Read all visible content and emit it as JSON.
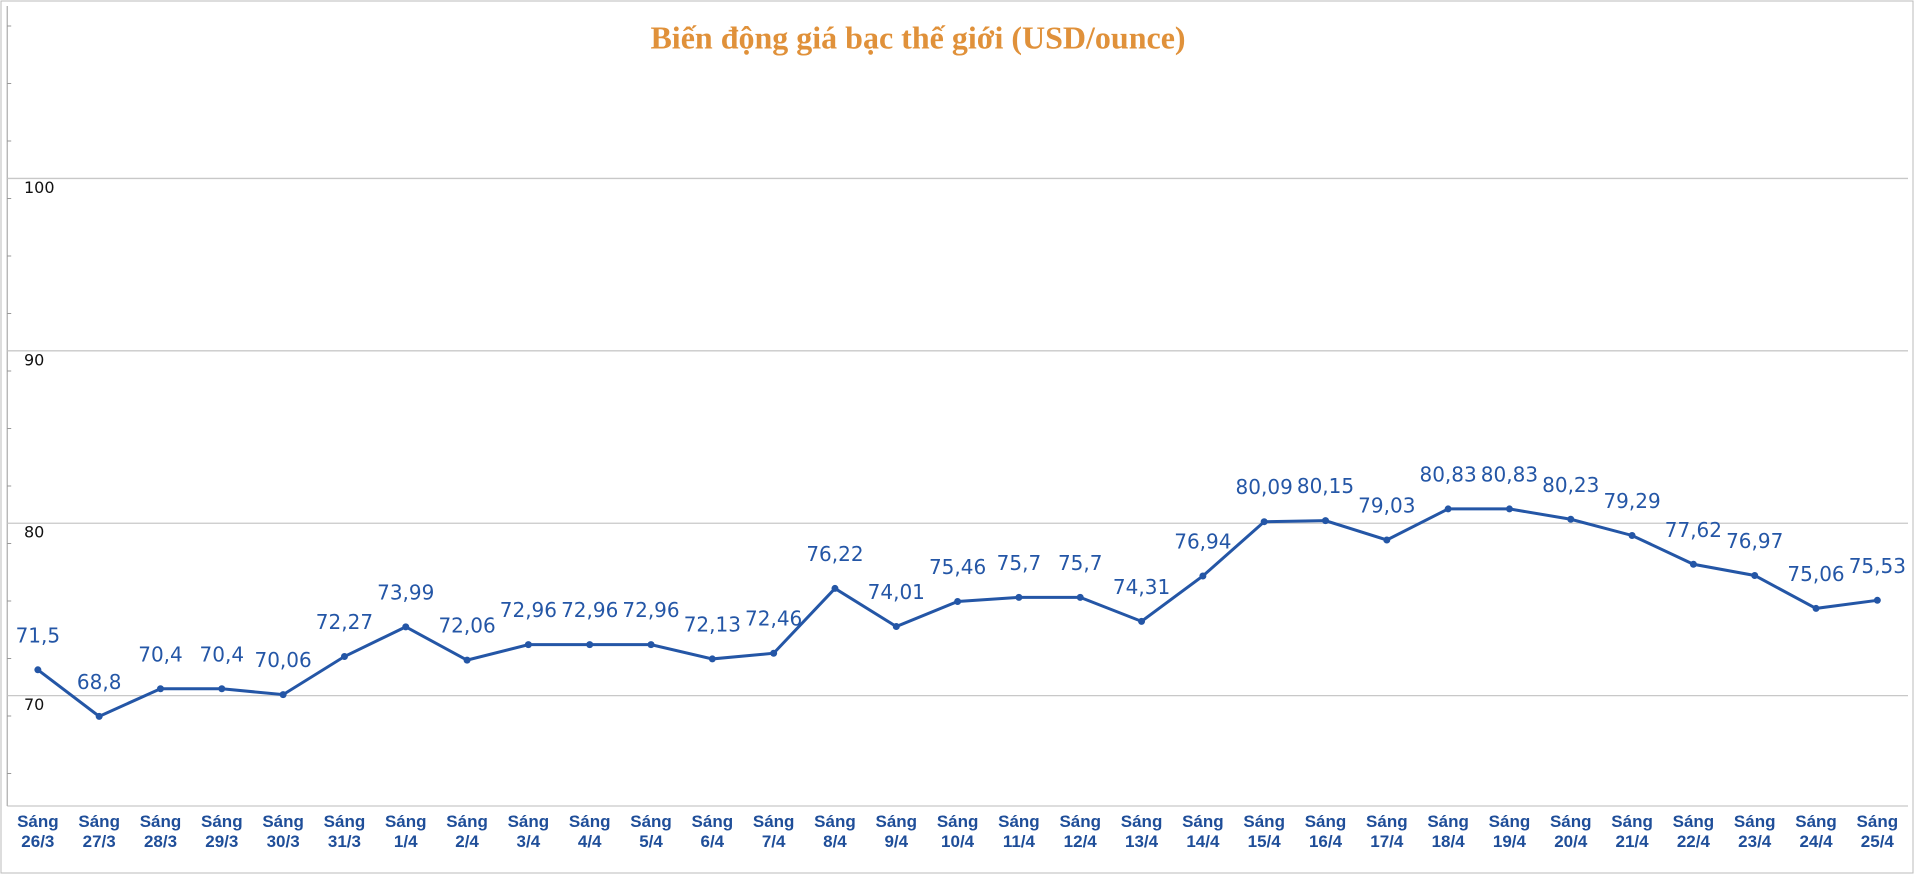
{
  "chart_data": {
    "type": "line",
    "title": "Biến động giá bạc thế giới (USD/ounce)",
    "categories": [
      "Sáng\n26/3",
      "Sáng\n27/3",
      "Sáng\n28/3",
      "Sáng\n29/3",
      "Sáng\n30/3",
      "Sáng\n31/3",
      "Sáng\n1/4",
      "Sáng\n2/4",
      "Sáng\n3/4",
      "Sáng\n4/4",
      "Sáng\n5/4",
      "Sáng\n6/4",
      "Sáng\n7/4",
      "Sáng\n8/4",
      "Sáng\n9/4",
      "Sáng\n10/4",
      "Sáng\n11/4",
      "Sáng\n12/4",
      "Sáng\n13/4",
      "Sáng\n14/4",
      "Sáng\n15/4",
      "Sáng\n16/4",
      "Sáng\n17/4",
      "Sáng\n18/4",
      "Sáng\n19/4",
      "Sáng\n20/4",
      "Sáng\n21/4",
      "Sáng\n22/4",
      "Sáng\n23/4",
      "Sáng\n24/4",
      "Sáng\n25/4"
    ],
    "values": [
      71.5,
      68.8,
      70.4,
      70.4,
      70.06,
      72.27,
      73.99,
      72.06,
      72.96,
      72.96,
      72.96,
      72.13,
      72.46,
      76.22,
      74.01,
      75.46,
      75.7,
      75.7,
      74.31,
      76.94,
      80.09,
      80.15,
      79.03,
      80.83,
      80.83,
      80.23,
      79.29,
      77.62,
      76.97,
      75.06,
      75.53
    ],
    "value_labels": [
      "71,5",
      "68,8",
      "70,4",
      "70,4",
      "70,06",
      "72,27",
      "73,99",
      "72,06",
      "72,96",
      "72,96",
      "72,96",
      "72,13",
      "72,46",
      "76,22",
      "74,01",
      "75,46",
      "75,7",
      "75,7",
      "74,31",
      "76,94",
      "80,09",
      "80,15",
      "79,03",
      "80,83",
      "80,83",
      "80,23",
      "79,29",
      "77,62",
      "76,97",
      "75,06",
      "75,53"
    ],
    "color": "#2456a6",
    "ylim": [
      63.6,
      110
    ],
    "yticks": [
      70,
      80,
      90,
      100
    ],
    "grid": true
  }
}
